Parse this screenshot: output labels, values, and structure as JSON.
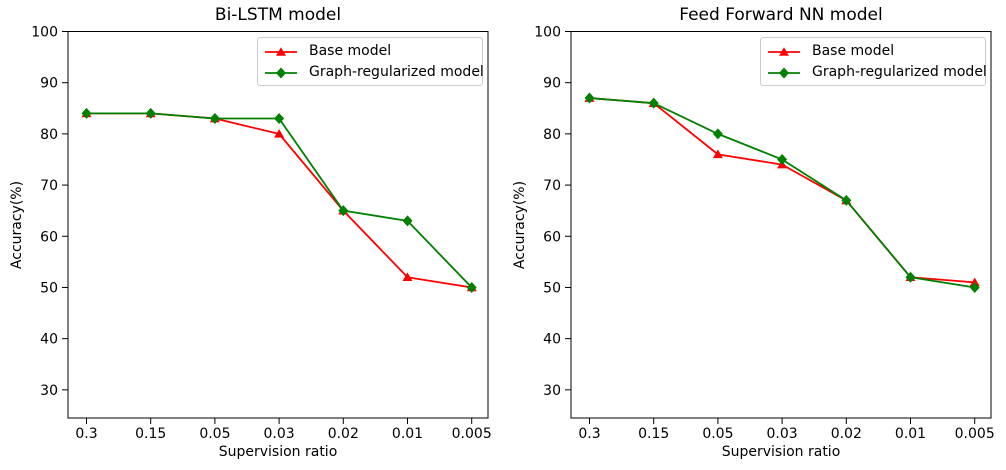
{
  "figure": {
    "background": "#ffffff",
    "frame_color": "#000000"
  },
  "chart_data": [
    {
      "type": "line",
      "title": "Bi-LSTM model",
      "xlabel": "Supervision ratio",
      "ylabel": "Accuracy(%)",
      "categories": [
        "0.3",
        "0.15",
        "0.05",
        "0.03",
        "0.02",
        "0.01",
        "0.005"
      ],
      "yticks": [
        30,
        40,
        50,
        60,
        70,
        80,
        90,
        100
      ],
      "ylim": [
        24.5,
        100
      ],
      "grid": false,
      "legend_position": "upper right",
      "series": [
        {
          "name": "Base model",
          "color": "#ff0000",
          "marker": "triangle",
          "values": [
            84,
            84,
            83,
            80,
            65,
            52,
            50
          ]
        },
        {
          "name": "Graph-regularized model",
          "color": "#008000",
          "marker": "diamond",
          "values": [
            84,
            84,
            83,
            83,
            65,
            63,
            50
          ]
        }
      ]
    },
    {
      "type": "line",
      "title": "Feed Forward NN model",
      "xlabel": "Supervision ratio",
      "ylabel": "Accuracy(%)",
      "categories": [
        "0.3",
        "0.15",
        "0.05",
        "0.03",
        "0.02",
        "0.01",
        "0.005"
      ],
      "yticks": [
        30,
        40,
        50,
        60,
        70,
        80,
        90,
        100
      ],
      "ylim": [
        24.5,
        100
      ],
      "grid": false,
      "legend_position": "upper right",
      "series": [
        {
          "name": "Base model",
          "color": "#ff0000",
          "marker": "triangle",
          "values": [
            87,
            86,
            76,
            74,
            67,
            52,
            51
          ]
        },
        {
          "name": "Graph-regularized model",
          "color": "#008000",
          "marker": "diamond",
          "values": [
            87,
            86,
            80,
            75,
            67,
            52,
            50
          ]
        }
      ]
    }
  ]
}
